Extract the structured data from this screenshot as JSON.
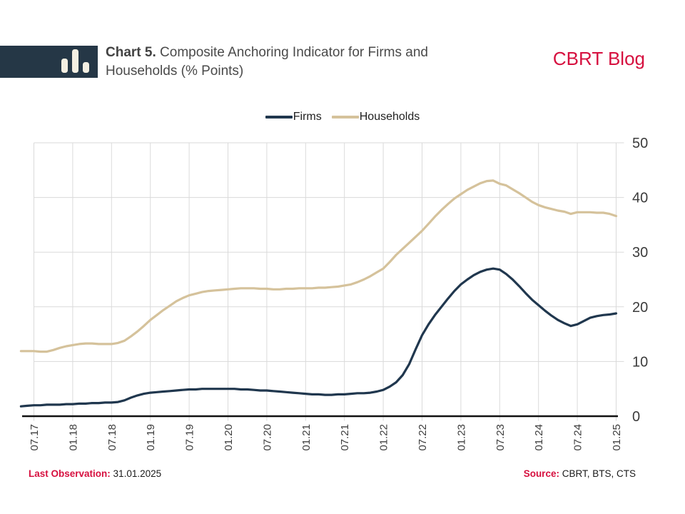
{
  "header": {
    "title_bold": "Chart 5.",
    "title_rest": " Composite Anchoring Indicator for Firms and Households (% Points)",
    "brand": "CBRT Blog",
    "logo_icon": "bar-chart-icon"
  },
  "footer": {
    "last_observation_label": "Last Observation:",
    "last_observation_value": "31.01.2025",
    "source_label": "Source:",
    "source_value": "CBRT, BTS, CTS"
  },
  "colors": {
    "accent_red": "#d6103f",
    "firms_navy": "#20374e",
    "households_tan": "#d5c29b",
    "logo_background": "#253746",
    "logo_bars": "#f4efe2",
    "gridline": "#dadada",
    "axis": "#111111",
    "title_text": "#4a4a4a",
    "tick_text": "#3c3c3c"
  },
  "chart_data": {
    "type": "line",
    "title": "Chart 5. Composite Anchoring Indicator for Firms and Households (% Points)",
    "ylabel": "% Points",
    "ylim": [
      0,
      50
    ],
    "yticks": [
      0,
      10,
      20,
      30,
      40,
      50
    ],
    "yaxis_side": "right",
    "grid": true,
    "legend_position": "top-center",
    "x_frequency": "monthly",
    "x_tick_labels": [
      "07.17",
      "01.18",
      "07.18",
      "01.19",
      "07.19",
      "01.20",
      "07.20",
      "01.21",
      "07.21",
      "01.22",
      "07.22",
      "01.23",
      "07.23",
      "01.24",
      "07.24",
      "01.25"
    ],
    "x_tick_months": [
      2,
      8,
      14,
      20,
      26,
      32,
      38,
      44,
      50,
      56,
      62,
      68,
      74,
      80,
      86,
      92
    ],
    "series": [
      {
        "name": "Firms",
        "color": "#20374e",
        "values": [
          1.8,
          1.9,
          2.0,
          2.0,
          2.1,
          2.1,
          2.1,
          2.2,
          2.2,
          2.3,
          2.3,
          2.4,
          2.4,
          2.5,
          2.5,
          2.6,
          2.9,
          3.4,
          3.8,
          4.1,
          4.3,
          4.4,
          4.5,
          4.6,
          4.7,
          4.8,
          4.9,
          4.9,
          5.0,
          5.0,
          5.0,
          5.0,
          5.0,
          5.0,
          4.9,
          4.9,
          4.8,
          4.7,
          4.7,
          4.6,
          4.5,
          4.4,
          4.3,
          4.2,
          4.1,
          4.0,
          4.0,
          3.9,
          3.9,
          4.0,
          4.0,
          4.1,
          4.2,
          4.2,
          4.3,
          4.5,
          4.8,
          5.4,
          6.2,
          7.5,
          9.5,
          12.2,
          14.8,
          16.8,
          18.5,
          20.0,
          21.5,
          22.9,
          24.1,
          25.0,
          25.8,
          26.4,
          26.8,
          27.0,
          26.8,
          26.0,
          25.0,
          23.8,
          22.5,
          21.3,
          20.3,
          19.3,
          18.4,
          17.6,
          17.0,
          16.5,
          16.8,
          17.4,
          18.0,
          18.3,
          18.5,
          18.6,
          18.8
        ]
      },
      {
        "name": "Households",
        "color": "#d5c29b",
        "values": [
          11.9,
          11.9,
          11.9,
          11.8,
          11.8,
          12.1,
          12.5,
          12.8,
          13.0,
          13.2,
          13.3,
          13.3,
          13.2,
          13.2,
          13.2,
          13.4,
          13.8,
          14.6,
          15.5,
          16.5,
          17.6,
          18.5,
          19.4,
          20.2,
          21.0,
          21.6,
          22.1,
          22.4,
          22.7,
          22.9,
          23.0,
          23.1,
          23.2,
          23.3,
          23.4,
          23.4,
          23.4,
          23.3,
          23.3,
          23.2,
          23.2,
          23.3,
          23.3,
          23.4,
          23.4,
          23.4,
          23.5,
          23.5,
          23.6,
          23.7,
          23.9,
          24.1,
          24.5,
          25.0,
          25.6,
          26.3,
          27.0,
          28.2,
          29.5,
          30.6,
          31.7,
          32.8,
          33.9,
          35.2,
          36.5,
          37.7,
          38.8,
          39.8,
          40.6,
          41.4,
          42.0,
          42.6,
          43.0,
          43.1,
          42.5,
          42.2,
          41.5,
          40.8,
          40.0,
          39.2,
          38.6,
          38.2,
          37.9,
          37.6,
          37.4,
          37.0,
          37.3,
          37.3,
          37.3,
          37.2,
          37.2,
          37.0,
          36.6
        ]
      }
    ]
  }
}
